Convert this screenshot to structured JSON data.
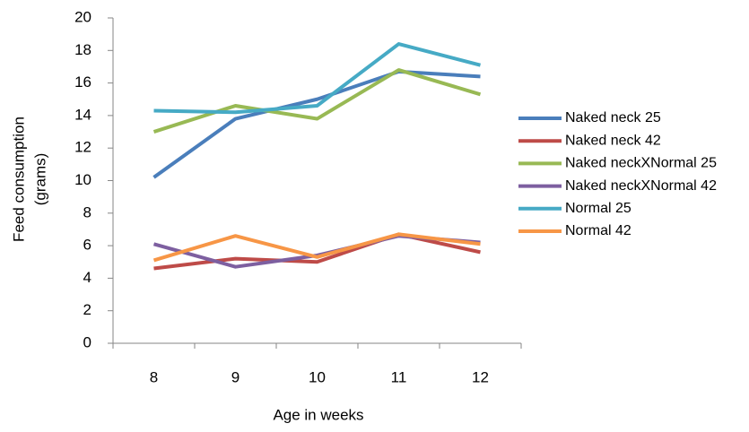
{
  "chart_data": {
    "type": "line",
    "xlabel": "Age in weeks",
    "ylabel": [
      "Feed consumption",
      "(grams)"
    ],
    "categories": [
      "8",
      "9",
      "10",
      "11",
      "12"
    ],
    "ylim": [
      0,
      20
    ],
    "yticks": [
      0,
      2,
      4,
      6,
      8,
      10,
      12,
      14,
      16,
      18,
      20
    ],
    "series": [
      {
        "name": "Naked neck 25",
        "color": "#4a7ebb",
        "values": [
          10.2,
          13.8,
          15.0,
          16.7,
          16.4
        ]
      },
      {
        "name": "Naked neck 42",
        "color": "#be4b48",
        "values": [
          4.6,
          5.2,
          5.0,
          6.7,
          5.6
        ]
      },
      {
        "name": "Naked neckXNormal 25",
        "color": "#98b954",
        "values": [
          13.0,
          14.6,
          13.8,
          16.8,
          15.3
        ]
      },
      {
        "name": "Naked neckXNormal 42",
        "color": "#7d5fa0",
        "values": [
          6.1,
          4.7,
          5.4,
          6.6,
          6.2
        ]
      },
      {
        "name": "Normal 25",
        "color": "#46aac5",
        "values": [
          14.3,
          14.2,
          14.6,
          18.4,
          17.1
        ]
      },
      {
        "name": "Normal 42",
        "color": "#f79646",
        "values": [
          5.1,
          6.6,
          5.3,
          6.7,
          6.1
        ]
      }
    ]
  }
}
